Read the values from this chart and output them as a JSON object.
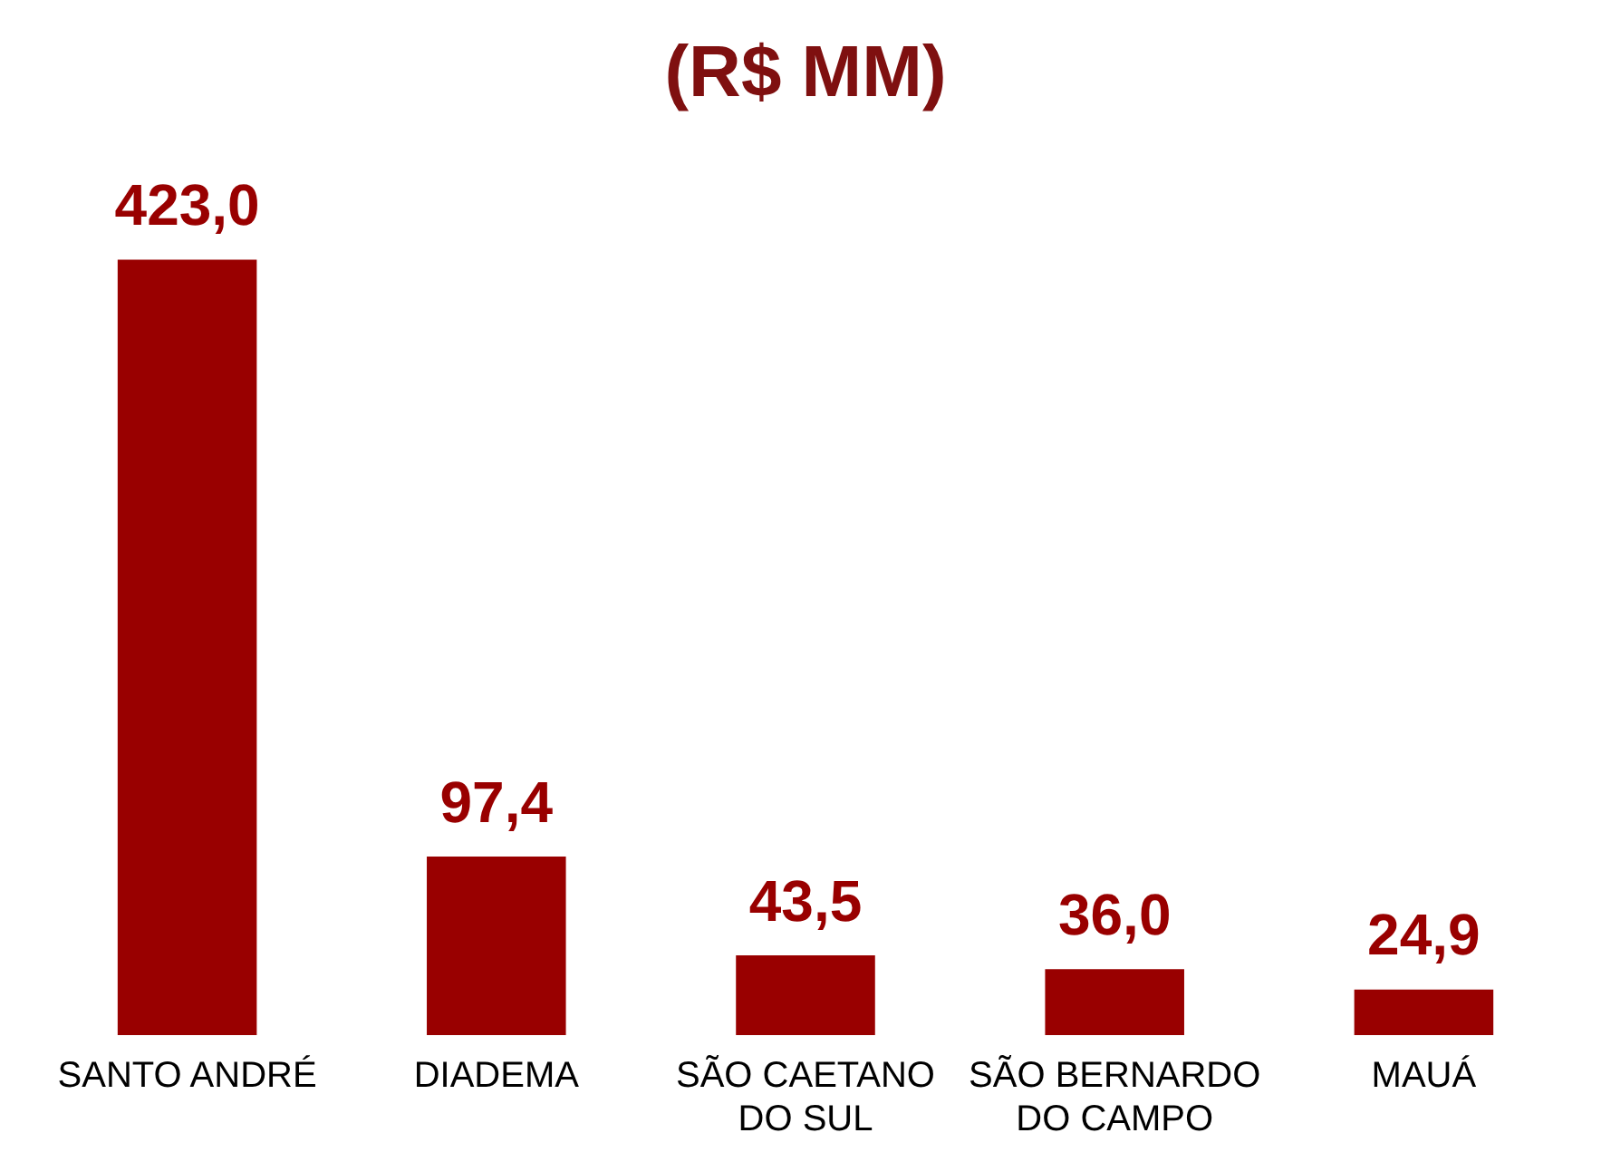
{
  "chart_data": {
    "type": "bar",
    "title": "(R$ MM)",
    "categories": [
      "SANTO ANDRÉ",
      "DIADEMA",
      "SÃO CAETANO DO SUL",
      "SÃO BERNARDO DO CAMPO",
      "MAUÁ"
    ],
    "values": [
      423.0,
      97.4,
      43.5,
      36.0,
      24.9
    ],
    "value_labels": [
      "423,0",
      "97,4",
      "43,5",
      "36,0",
      "24,9"
    ],
    "color": "#990000"
  }
}
